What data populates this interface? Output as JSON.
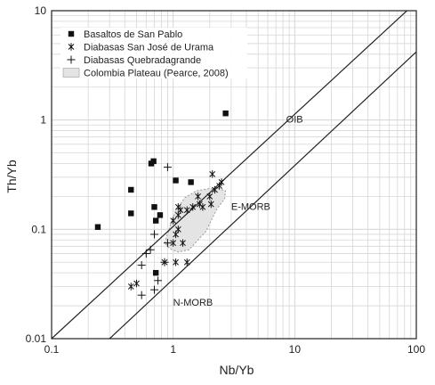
{
  "chart_data": {
    "type": "scatter",
    "title": "",
    "xlabel": "Nb/Yb",
    "ylabel": "Th/Yb",
    "x_scale": "log",
    "y_scale": "log",
    "xlim": [
      0.1,
      100
    ],
    "ylim": [
      0.01,
      10
    ],
    "grid": true,
    "legend_position": "top-left",
    "x_ticks": [
      {
        "value": 0.1,
        "label": "0.1"
      },
      {
        "value": 1,
        "label": "1"
      },
      {
        "value": 10,
        "label": "10"
      },
      {
        "value": 100,
        "label": "100"
      }
    ],
    "y_ticks": [
      {
        "value": 0.01,
        "label": "0.01"
      },
      {
        "value": 0.1,
        "label": "0.1"
      },
      {
        "value": 1,
        "label": "1"
      },
      {
        "value": 10,
        "label": "10"
      }
    ],
    "legend": [
      {
        "key": "basaltos",
        "label": "Basaltos de San Pablo",
        "marker": "square"
      },
      {
        "key": "urama",
        "label": "Diabasas San José de Urama",
        "marker": "asterisk"
      },
      {
        "key": "quebradagrande",
        "label": "Diabasas Quebradagrande",
        "marker": "plus"
      },
      {
        "key": "plateau",
        "label": "Colombia Plateau (Pearce, 2008)",
        "marker": "shaded-area"
      }
    ],
    "series": [
      {
        "key": "basaltos",
        "marker": "square",
        "points": [
          [
            0.24,
            0.105
          ],
          [
            0.45,
            0.23
          ],
          [
            0.45,
            0.14
          ],
          [
            0.66,
            0.4
          ],
          [
            0.69,
            0.42
          ],
          [
            0.7,
            0.16
          ],
          [
            0.72,
            0.12
          ],
          [
            0.78,
            0.135
          ],
          [
            0.72,
            0.04
          ],
          [
            1.05,
            0.28
          ],
          [
            1.4,
            0.27
          ],
          [
            2.7,
            1.15
          ]
        ]
      },
      {
        "key": "urama",
        "marker": "asterisk",
        "points": [
          [
            0.45,
            0.03
          ],
          [
            0.5,
            0.032
          ],
          [
            0.85,
            0.05
          ],
          [
            1.05,
            0.05
          ],
          [
            1.3,
            0.05
          ],
          [
            1.0,
            0.075
          ],
          [
            1.2,
            0.075
          ],
          [
            1.05,
            0.09
          ],
          [
            1.1,
            0.1
          ],
          [
            1.0,
            0.12
          ],
          [
            1.1,
            0.135
          ],
          [
            1.15,
            0.15
          ],
          [
            1.1,
            0.16
          ],
          [
            1.3,
            0.15
          ],
          [
            1.45,
            0.16
          ],
          [
            1.6,
            0.2
          ],
          [
            1.65,
            0.17
          ],
          [
            1.75,
            0.16
          ],
          [
            2.0,
            0.2
          ],
          [
            2.05,
            0.17
          ],
          [
            2.2,
            0.23
          ],
          [
            2.4,
            0.25
          ],
          [
            2.5,
            0.27
          ],
          [
            2.1,
            0.32
          ]
        ]
      },
      {
        "key": "quebradagrande",
        "marker": "plus",
        "points": [
          [
            0.55,
            0.025
          ],
          [
            0.7,
            0.028
          ],
          [
            0.75,
            0.034
          ],
          [
            0.55,
            0.047
          ],
          [
            0.6,
            0.06
          ],
          [
            0.65,
            0.065
          ],
          [
            0.85,
            0.05
          ],
          [
            0.9,
            0.075
          ],
          [
            0.7,
            0.09
          ],
          [
            0.9,
            0.37
          ]
        ]
      }
    ],
    "reference_lines": [
      {
        "label": "OIB",
        "points": [
          [
            0.1,
            0.01
          ],
          [
            100,
            12
          ]
        ],
        "label_at": [
          8.5,
          0.95
        ]
      },
      {
        "label": "E-MORB",
        "points": [
          [
            0.3,
            0.01
          ],
          [
            100,
            4.2
          ]
        ],
        "label_at": [
          3.0,
          0.15
        ]
      },
      {
        "label": "N-MORB",
        "points": [],
        "label_at": [
          1.0,
          0.02
        ]
      }
    ],
    "field": {
      "key": "plateau",
      "boundary": [
        [
          0.85,
          0.075
        ],
        [
          0.95,
          0.11
        ],
        [
          1.05,
          0.15
        ],
        [
          1.25,
          0.195
        ],
        [
          1.55,
          0.225
        ],
        [
          1.95,
          0.235
        ],
        [
          2.4,
          0.235
        ],
        [
          2.7,
          0.225
        ],
        [
          2.65,
          0.19
        ],
        [
          2.3,
          0.155
        ],
        [
          2.05,
          0.12
        ],
        [
          1.85,
          0.095
        ],
        [
          1.6,
          0.08
        ],
        [
          1.35,
          0.065
        ],
        [
          1.1,
          0.062
        ],
        [
          0.95,
          0.066
        ]
      ]
    },
    "colors": {
      "axis": "#222222",
      "grid": "#d6d6d6",
      "field_fill": "#e4e4e4",
      "field_stroke": "#9a9a9a",
      "marker": "#111111"
    }
  }
}
